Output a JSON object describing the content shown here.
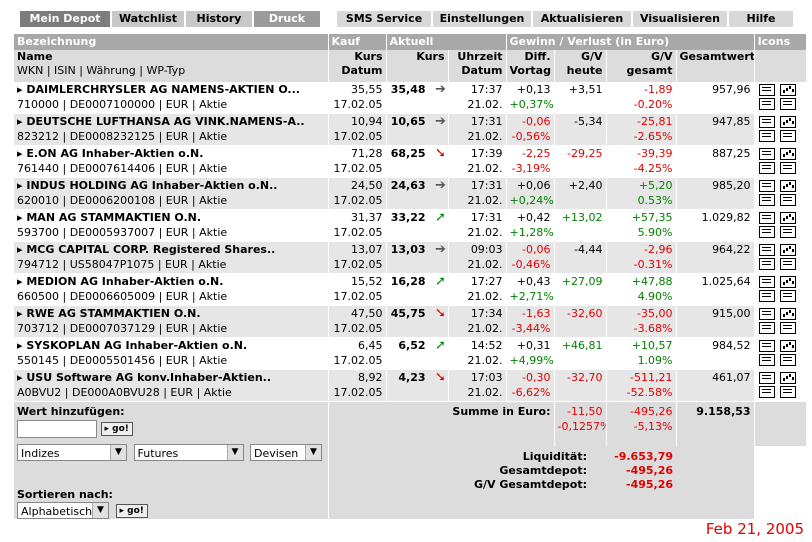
{
  "tabs_left": [
    "Mein Depot",
    "Watchlist",
    "History",
    "Druck"
  ],
  "tabs_right": [
    "SMS Service",
    "Einstellungen",
    "Aktualisieren",
    "Visualisieren",
    "Hilfe"
  ],
  "header": {
    "bezeichnung": "Bezeichnung",
    "kauf": "Kauf",
    "aktuell": "Aktuell",
    "gv": "Gewinn / Verlust  (in Euro)",
    "icons": "Icons",
    "name": "Name",
    "name_sub": "WKN | ISIN | Währung | WP-Typ",
    "kurs1": "Kurs",
    "datum1": "Datum",
    "kurs2": "Kurs",
    "uhrzeit": "Uhrzeit",
    "datum2": "Datum",
    "diff": "Diff.",
    "vortag": "Vortag",
    "gv1": "G/V",
    "heute": "heute",
    "gv2": "G/V",
    "gesamt": "gesamt",
    "gesamtwert": "Gesamtwert"
  },
  "rows": [
    {
      "name": "DAIMLERCHRYSLER AG NAMENS-AKTIEN O...",
      "sub": "710000 | DE0007100000 | EUR | Aktie",
      "kauf_kurs": "35,55",
      "kauf_datum": "17.02.05",
      "kurs": "35,48",
      "arrow": "flat",
      "zeit": "17:37",
      "datum": "21.02.",
      "diff": "+0,13",
      "diff_pct": "+0,37%",
      "diff_sign": "pos",
      "gv_heute": "+3,51",
      "gvh_sign": "none",
      "gv_ges": "-1,89",
      "gv_pct": "-0.20%",
      "gvg_sign": "neg",
      "wert": "957,96"
    },
    {
      "name": "DEUTSCHE LUFTHANSA AG VINK.NAMENS-A..",
      "sub": "823212 | DE0008232125 | EUR | Aktie",
      "kauf_kurs": "10,94",
      "kauf_datum": "17.02.05",
      "kurs": "10,65",
      "arrow": "flat",
      "zeit": "17:31",
      "datum": "21.02.",
      "diff": "-0,06",
      "diff_pct": "-0,56%",
      "diff_sign": "neg",
      "gv_heute": "-5,34",
      "gvh_sign": "none",
      "gv_ges": "-25,81",
      "gv_pct": "-2.65%",
      "gvg_sign": "neg",
      "wert": "947,85"
    },
    {
      "name": "E.ON AG Inhaber-Aktien o.N.",
      "sub": "761440 | DE0007614406 | EUR | Aktie",
      "kauf_kurs": "71,28",
      "kauf_datum": "17.02.05",
      "kurs": "68,25",
      "arrow": "down",
      "zeit": "17:39",
      "datum": "21.02.",
      "diff": "-2,25",
      "diff_pct": "-3,19%",
      "diff_sign": "neg",
      "gv_heute": "-29,25",
      "gvh_sign": "neg",
      "gv_ges": "-39,39",
      "gv_pct": "-4.25%",
      "gvg_sign": "neg",
      "wert": "887,25"
    },
    {
      "name": "INDUS HOLDING AG Inhaber-Aktien o.N..",
      "sub": "620010 | DE0006200108 | EUR | Aktie",
      "kauf_kurs": "24,50",
      "kauf_datum": "17.02.05",
      "kurs": "24,63",
      "arrow": "flat",
      "zeit": "17:31",
      "datum": "21.02.",
      "diff": "+0,06",
      "diff_pct": "+0,24%",
      "diff_sign": "pos",
      "gv_heute": "+2,40",
      "gvh_sign": "none",
      "gv_ges": "+5,20",
      "gv_pct": "0.53%",
      "gvg_sign": "pos",
      "wert": "985,20"
    },
    {
      "name": "MAN AG STAMMAKTIEN O.N.",
      "sub": "593700 | DE0005937007 | EUR | Aktie",
      "kauf_kurs": "31,37",
      "kauf_datum": "17.02.05",
      "kurs": "33,22",
      "arrow": "up",
      "zeit": "17:31",
      "datum": "21.02.",
      "diff": "+0,42",
      "diff_pct": "+1,28%",
      "diff_sign": "pos",
      "gv_heute": "+13,02",
      "gvh_sign": "pos",
      "gv_ges": "+57,35",
      "gv_pct": "5.90%",
      "gvg_sign": "pos",
      "wert": "1.029,82"
    },
    {
      "name": "MCG CAPITAL CORP. Registered Shares..",
      "sub": "794712 | US58047P1075 | EUR | Aktie",
      "kauf_kurs": "13,07",
      "kauf_datum": "17.02.05",
      "kurs": "13,03",
      "arrow": "flat",
      "zeit": "09:03",
      "datum": "21.02.",
      "diff": "-0,06",
      "diff_pct": "-0,46%",
      "diff_sign": "neg",
      "gv_heute": "-4,44",
      "gvh_sign": "none",
      "gv_ges": "-2,96",
      "gv_pct": "-0.31%",
      "gvg_sign": "neg",
      "wert": "964,22"
    },
    {
      "name": "MEDION AG Inhaber-Aktien o.N.",
      "sub": "660500 | DE0006605009 | EUR | Aktie",
      "kauf_kurs": "15,52",
      "kauf_datum": "17.02.05",
      "kurs": "16,28",
      "arrow": "up",
      "zeit": "17:27",
      "datum": "21.02.",
      "diff": "+0,43",
      "diff_pct": "+2,71%",
      "diff_sign": "pos",
      "gv_heute": "+27,09",
      "gvh_sign": "pos",
      "gv_ges": "+47,88",
      "gv_pct": "4.90%",
      "gvg_sign": "pos",
      "wert": "1.025,64"
    },
    {
      "name": "RWE AG STAMMAKTIEN O.N.",
      "sub": "703712 | DE0007037129 | EUR | Aktie",
      "kauf_kurs": "47,50",
      "kauf_datum": "17.02.05",
      "kurs": "45,75",
      "arrow": "down",
      "zeit": "17:34",
      "datum": "21.02.",
      "diff": "-1,63",
      "diff_pct": "-3,44%",
      "diff_sign": "neg",
      "gv_heute": "-32,60",
      "gvh_sign": "neg",
      "gv_ges": "-35,00",
      "gv_pct": "-3.68%",
      "gvg_sign": "neg",
      "wert": "915,00"
    },
    {
      "name": "SYSKOPLAN AG Inhaber-Aktien o.N.",
      "sub": "550145 | DE0005501456 | EUR | Aktie",
      "kauf_kurs": "6,45",
      "kauf_datum": "17.02.05",
      "kurs": "6,52",
      "arrow": "up",
      "zeit": "14:52",
      "datum": "21.02.",
      "diff": "+0,31",
      "diff_pct": "+4,99%",
      "diff_sign": "pos",
      "gv_heute": "+46,81",
      "gvh_sign": "pos",
      "gv_ges": "+10,57",
      "gv_pct": "1.09%",
      "gvg_sign": "pos",
      "wert": "984,52"
    },
    {
      "name": "USU Software AG konv.Inhaber-Aktien..",
      "sub": "A0BVU2 | DE000A0BVU28 | EUR | Aktie",
      "kauf_kurs": "8,92",
      "kauf_datum": "17.02.05",
      "kurs": "4,23",
      "arrow": "down",
      "zeit": "17:03",
      "datum": "21.02.",
      "diff": "-0,30",
      "diff_pct": "-6,62%",
      "diff_sign": "neg",
      "gv_heute": "-32,70",
      "gvh_sign": "neg",
      "gv_ges": "-511,21",
      "gv_pct": "-52.58%",
      "gvg_sign": "neg",
      "wert": "461,07"
    }
  ],
  "bottom": {
    "wert_label": "Wert hinzufügen:",
    "go": "go!",
    "select1": "Indizes",
    "select2": "Futures",
    "select3": "Devisen",
    "summe_label": "Summe in Euro:",
    "summe_heute": "-11,50",
    "summe_heute_pct": "-0,1257%",
    "summe_ges": "-495,26",
    "summe_ges_pct": "-5,13%",
    "summe_wert": "9.158,53",
    "liquiditaet_label": "Liquidität:",
    "liquiditaet": "-9.653,79",
    "gesamtdepot_label": "Gesamtdepot:",
    "gesamtdepot": "-495,26",
    "gvgesamt_label": "G/V Gesamtdepot:",
    "gvgesamt": "-495,26",
    "sort_label": "Sortieren nach:",
    "sort_select": "Alphabetisch"
  },
  "datestamp": "Feb 21, 2005"
}
